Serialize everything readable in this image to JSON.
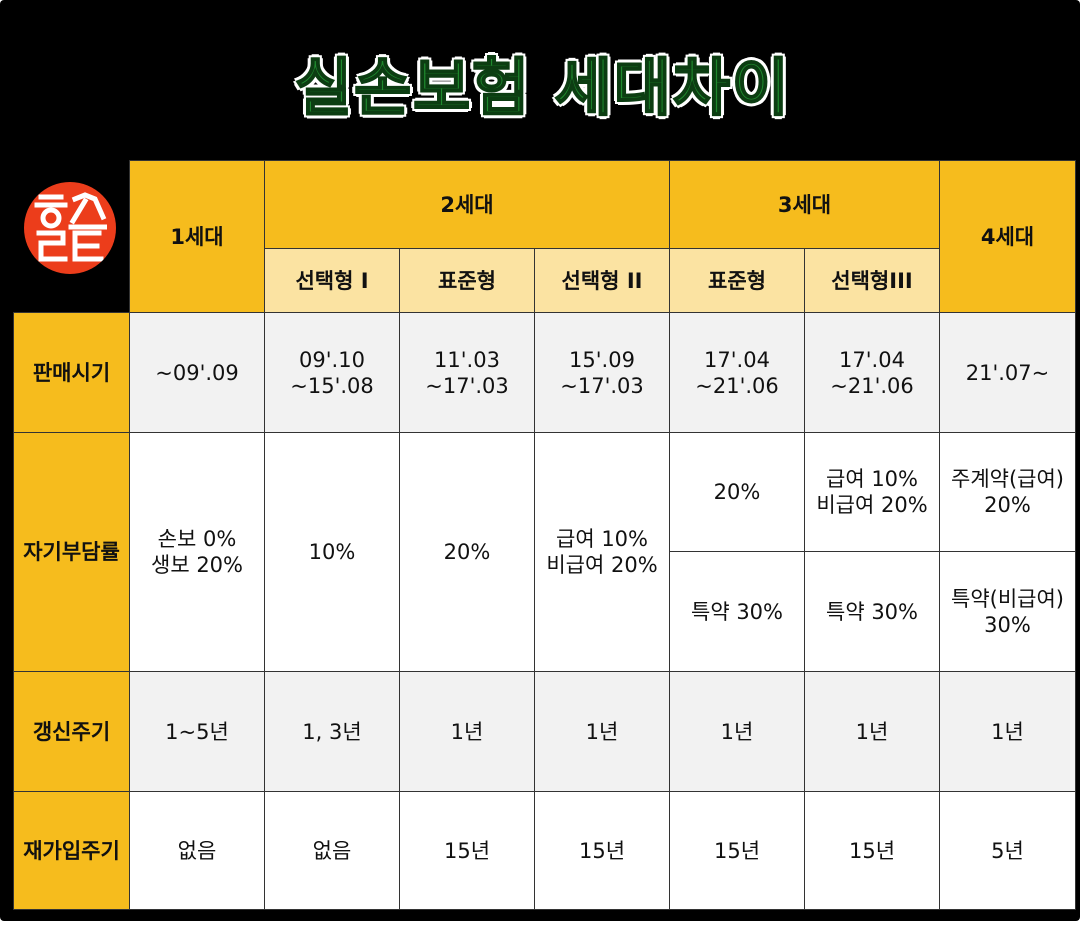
{
  "title": "실손보험 세대차이",
  "logo_text": "흥스르트",
  "headers": {
    "gen1": "1세대",
    "gen2": "2세대",
    "gen3": "3세대",
    "gen4": "4세대",
    "gen2_sub": [
      "선택형 I",
      "표준형",
      "선택형 II"
    ],
    "gen3_sub": [
      "표준형",
      "선택형III"
    ]
  },
  "rows": {
    "sales_period": {
      "label": "판매시기",
      "values": [
        "~09'.09",
        "09'.10\n~15'.08",
        "11'.03\n~17'.03",
        "15'.09\n~17'.03",
        "17'.04\n~21'.06",
        "17'.04\n~21'.06",
        "21'.07~"
      ]
    },
    "copay": {
      "label": "자기부담률",
      "gen1": "손보 0%\n생보 20%",
      "gen2_type1": "10%",
      "gen2_std": "20%",
      "gen2_type2": "급여 10%\n비급여 20%",
      "gen3_std_top": "20%",
      "gen3_std_bottom": "특약 30%",
      "gen3_type3_top": "급여 10%\n비급여 20%",
      "gen3_type3_bottom": "특약 30%",
      "gen4_top": "주계약(급여)\n20%",
      "gen4_bottom": "특약(비급여)\n30%"
    },
    "renewal": {
      "label": "갱신주기",
      "values": [
        "1~5년",
        "1, 3년",
        "1년",
        "1년",
        "1년",
        "1년",
        "1년"
      ]
    },
    "reenroll": {
      "label": "재가입주기",
      "values": [
        "없음",
        "없음",
        "15년",
        "15년",
        "15년",
        "15년",
        "5년"
      ]
    }
  }
}
